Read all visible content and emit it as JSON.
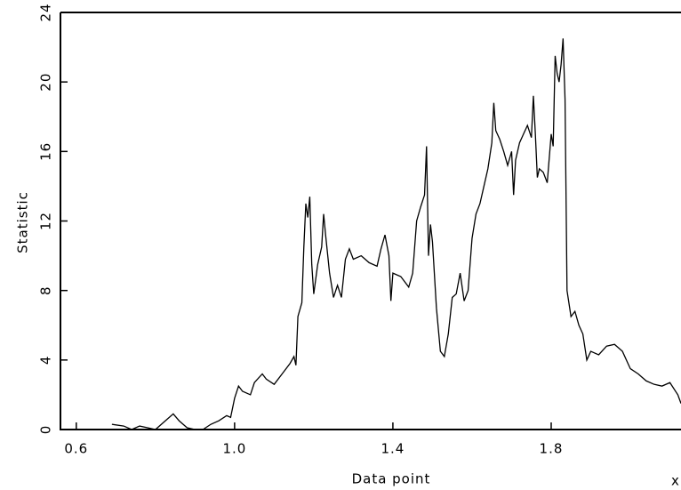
{
  "chart_data": {
    "type": "line",
    "x_label": "Data point",
    "y_label": "Statistic",
    "annotation": "x",
    "color": "#000000",
    "xlim": [
      0.56,
      2.128
    ],
    "ylim": [
      0,
      24
    ],
    "xticks": [
      0.6,
      {
        "value": 1,
        "label": "1.0"
      },
      1.4,
      1.8
    ],
    "yticks": [
      0,
      4,
      8,
      12,
      16,
      20,
      24
    ],
    "x": [
      0.69,
      0.72,
      0.74,
      0.76,
      0.78,
      0.8,
      0.83,
      0.845,
      0.86,
      0.88,
      0.9,
      0.92,
      0.94,
      0.96,
      0.98,
      0.99,
      1.0,
      1.01,
      1.02,
      1.04,
      1.05,
      1.07,
      1.08,
      1.1,
      1.12,
      1.14,
      1.15,
      1.155,
      1.16,
      1.17,
      1.175,
      1.18,
      1.185,
      1.19,
      1.195,
      1.2,
      1.21,
      1.22,
      1.225,
      1.23,
      1.24,
      1.25,
      1.26,
      1.27,
      1.28,
      1.29,
      1.3,
      1.32,
      1.34,
      1.36,
      1.37,
      1.38,
      1.39,
      1.395,
      1.4,
      1.42,
      1.44,
      1.45,
      1.46,
      1.47,
      1.48,
      1.485,
      1.49,
      1.495,
      1.5,
      1.51,
      1.52,
      1.53,
      1.54,
      1.55,
      1.56,
      1.57,
      1.58,
      1.59,
      1.6,
      1.61,
      1.62,
      1.63,
      1.64,
      1.65,
      1.655,
      1.66,
      1.67,
      1.68,
      1.69,
      1.7,
      1.705,
      1.71,
      1.72,
      1.73,
      1.74,
      1.75,
      1.755,
      1.76,
      1.765,
      1.77,
      1.78,
      1.79,
      1.8,
      1.805,
      1.81,
      1.815,
      1.82,
      1.825,
      1.83,
      1.835,
      1.84,
      1.85,
      1.86,
      1.87,
      1.88,
      1.89,
      1.9,
      1.92,
      1.94,
      1.96,
      1.98,
      2.0,
      2.02,
      2.04,
      2.06,
      2.08,
      2.1,
      2.12,
      2.128
    ],
    "values": [
      0.3,
      0.2,
      0.0,
      0.2,
      0.1,
      0.0,
      0.6,
      0.9,
      0.5,
      0.1,
      0.0,
      0.0,
      0.3,
      0.5,
      0.8,
      0.7,
      1.8,
      2.5,
      2.2,
      2.0,
      2.7,
      3.2,
      2.9,
      2.6,
      3.2,
      3.8,
      4.2,
      3.7,
      6.5,
      7.3,
      10.5,
      13.0,
      12.2,
      13.4,
      9.5,
      7.8,
      9.5,
      10.5,
      12.4,
      11.2,
      9.0,
      7.6,
      8.3,
      7.6,
      9.8,
      10.4,
      9.8,
      10.0,
      9.6,
      9.4,
      10.4,
      11.2,
      10.0,
      7.4,
      9.0,
      8.8,
      8.2,
      9.0,
      12.0,
      12.8,
      13.5,
      16.3,
      10.0,
      11.8,
      10.8,
      7.0,
      4.5,
      4.2,
      5.5,
      7.6,
      7.8,
      9.0,
      7.4,
      8.0,
      11.0,
      12.4,
      13.0,
      14.0,
      15.0,
      16.5,
      18.8,
      17.2,
      16.7,
      16.0,
      15.2,
      16.0,
      13.5,
      15.5,
      16.5,
      17.0,
      17.5,
      16.8,
      19.2,
      17.0,
      14.5,
      15.0,
      14.8,
      14.2,
      17.0,
      16.3,
      21.5,
      20.5,
      20.0,
      21.0,
      22.5,
      19.0,
      8.0,
      6.5,
      6.8,
      6.0,
      5.5,
      4.0,
      4.5,
      4.3,
      4.8,
      4.9,
      4.5,
      3.5,
      3.2,
      2.8,
      2.6,
      2.5,
      2.7,
      2.0,
      1.5
    ]
  }
}
